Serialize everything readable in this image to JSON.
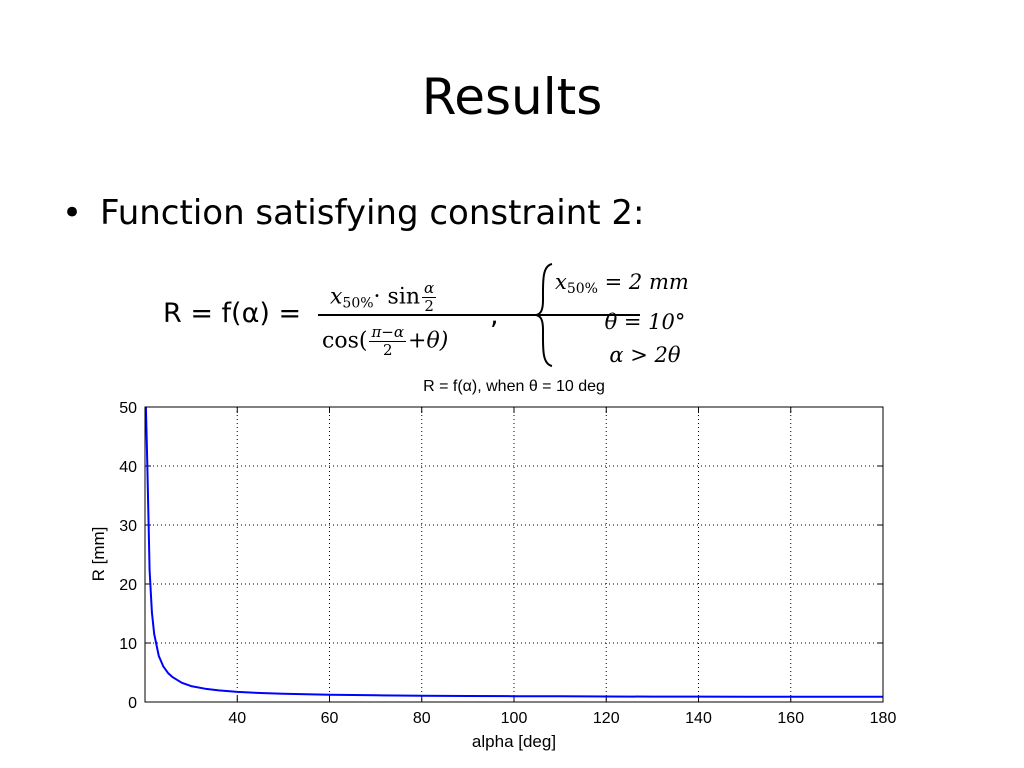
{
  "slide": {
    "title": "Results",
    "bullet_symbol": "•",
    "bullet_text": "Function satisfying constraint 2:"
  },
  "formula": {
    "lhs": "R = f(α) = ",
    "num_x": "x",
    "num_sub": "50%",
    "num_mid": "· sin",
    "num_frac_num": "α",
    "num_frac_den": "2",
    "den_cos": "cos(",
    "den_frac_num": "π−α",
    "den_frac_den": "2",
    "den_tail": "+θ)",
    "comma": ",",
    "cases": [
      {
        "var": "x",
        "sub": "50%",
        "rest": " = 2 mm"
      },
      {
        "text": "θ = 10°"
      },
      {
        "text": "α > 2θ"
      }
    ]
  },
  "chart_data": {
    "type": "line",
    "title": "R = f(α), when θ = 10 deg",
    "xlabel": "alpha [deg]",
    "ylabel": "R [mm]",
    "xlim": [
      20,
      180
    ],
    "ylim": [
      0,
      50
    ],
    "xticks": [
      40,
      60,
      80,
      100,
      120,
      140,
      160,
      180
    ],
    "yticks": [
      0,
      10,
      20,
      30,
      40,
      50
    ],
    "grid": true,
    "series": [
      {
        "color": "#0000ff",
        "x": [
          20.2,
          20.5,
          21,
          21.5,
          22,
          23,
          24,
          25,
          26,
          28,
          30,
          33,
          36,
          40,
          45,
          50,
          60,
          70,
          80,
          90,
          100,
          110,
          120,
          130,
          140,
          150,
          160,
          170,
          180
        ],
        "y": [
          50,
          40.3,
          22.3,
          15.2,
          11.5,
          7.8,
          6.0,
          4.9,
          4.2,
          3.25,
          2.7,
          2.25,
          1.97,
          1.72,
          1.52,
          1.39,
          1.23,
          1.13,
          1.06,
          1.01,
          0.98,
          0.96,
          0.94,
          0.92,
          0.91,
          0.9,
          0.89,
          0.89,
          0.88
        ]
      }
    ]
  }
}
